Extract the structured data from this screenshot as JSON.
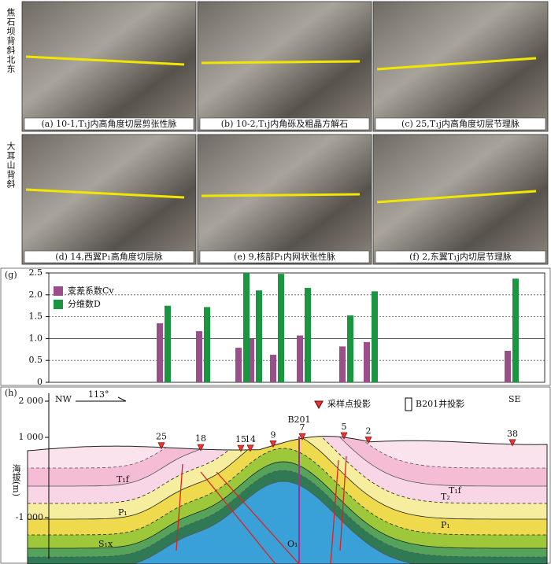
{
  "photos": {
    "side_labels": [
      "焦石坝背斜北东",
      "大耳山背斜"
    ],
    "captions": [
      "(a) 10-1,T₁j内高角度切层剪张性脉",
      "(b) 10-2,T₁j内角砾及粗晶方解石",
      "(c) 25,T₁j内高角度切层节理脉",
      "(d) 14,西翼P₁高角度切层脉",
      "(e) 9,核部P₁内网状张性脉",
      "(f) 2,东翼T₁j内切层节理脉"
    ]
  },
  "chart_data": {
    "type": "bar",
    "panel_label": "(g)",
    "categories": [
      null,
      null,
      null,
      null,
      null,
      null,
      null,
      null,
      null
    ],
    "series": [
      {
        "name": "变差系数Cv",
        "color": "#9b4f8a",
        "values": [
          1.35,
          1.17,
          0.79,
          1.0,
          0.63,
          1.07,
          0.82,
          0.92,
          0.72
        ]
      },
      {
        "name": "分维数D",
        "color": "#1a9641",
        "values": [
          1.75,
          1.72,
          2.5,
          2.1,
          2.48,
          2.16,
          1.53,
          2.08,
          2.37
        ]
      }
    ],
    "ylim": [
      0,
      2.5
    ],
    "yticks": [
      0,
      0.5,
      {
        "value": 1,
        "label": "1.0"
      },
      1.5,
      {
        "value": 2,
        "label": "2.0"
      },
      2.5
    ],
    "grid": true,
    "legend": "upper-left"
  },
  "section": {
    "panel_label": "(h)",
    "y_label": "海拔(m)",
    "y_ticks": [
      "2 000",
      "1 000",
      "-1 000"
    ],
    "direction_left": "NW",
    "azimuth": "113°",
    "direction_right": "SE",
    "legend": [
      "采样点投影",
      "B201井投影"
    ],
    "well": "B201",
    "samples": [
      "25",
      "18",
      "15",
      "14",
      "9",
      "7",
      "5",
      "2",
      "38"
    ],
    "formations": [
      "T₂",
      "T₁f",
      "T₁f",
      "P₁",
      "P₁",
      "S₁x",
      "O₁"
    ]
  }
}
